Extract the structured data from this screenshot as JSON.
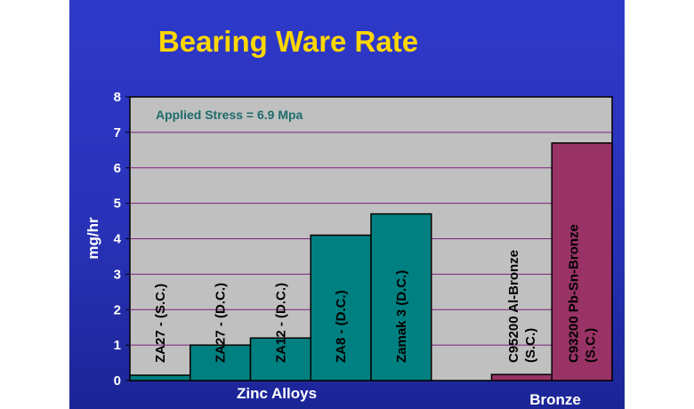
{
  "chart_data": {
    "type": "bar",
    "title": "Bearing Ware Rate",
    "ylabel": "mg/hr",
    "ylim": [
      0,
      8
    ],
    "yticks": [
      0,
      1,
      2,
      3,
      4,
      5,
      6,
      7,
      8
    ],
    "grid": true,
    "annotation": "Applied Stress = 6.9 Mpa",
    "categories": [
      [
        "ZA27 - (S.C.)"
      ],
      [
        "ZA27 - (D.C.)"
      ],
      [
        "ZA12 - (D.C.)"
      ],
      [
        "ZA8 - (D.C.)"
      ],
      [
        "Zamak 3 (D.C.)"
      ],
      [],
      [
        "C95200 Al-Bronze",
        "(S.C.)"
      ],
      [
        "C93200 Pb-Sn-Bronze",
        "(S.C.)"
      ]
    ],
    "values": [
      0.15,
      1.0,
      1.2,
      4.1,
      4.7,
      null,
      0.17,
      6.7
    ],
    "groups": [
      {
        "label": "Zinc Alloys",
        "color": "#008080"
      },
      {
        "label": "Bronze",
        "color": "#993366"
      }
    ],
    "bar_group": [
      0,
      0,
      0,
      0,
      0,
      null,
      1,
      1
    ]
  }
}
